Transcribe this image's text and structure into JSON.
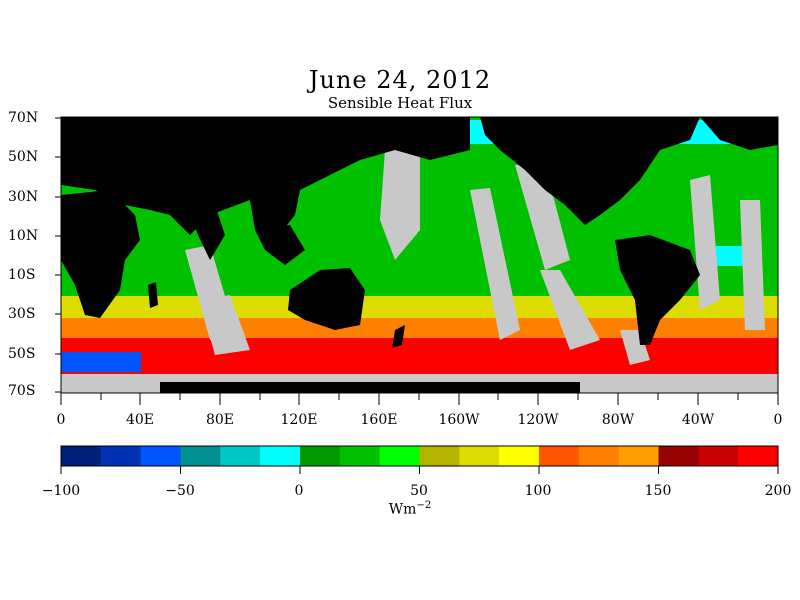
{
  "title": "June 24, 2012",
  "subtitle": "Sensible Heat Flux",
  "lat_labels": [
    "70N",
    "50N",
    "30N",
    "10N",
    "10S",
    "30S",
    "50S",
    "70S"
  ],
  "lon_labels": [
    "0",
    "40E",
    "80E",
    "120E",
    "160E",
    "160W",
    "120W",
    "80W",
    "40W",
    "0"
  ],
  "colorbar": {
    "labels": [
      "−100",
      "−50",
      "0",
      "50",
      "100",
      "150",
      "200"
    ],
    "units_base": "Wm",
    "units_exp": "−2",
    "colors": [
      "#001f7a",
      "#0033b3",
      "#0055ff",
      "#009090",
      "#00c8c8",
      "#00ffff",
      "#009900",
      "#00c000",
      "#00ff00",
      "#b4b400",
      "#dcdc00",
      "#ffff00",
      "#ff5500",
      "#ff8000",
      "#ffa000",
      "#960000",
      "#c80000",
      "#ff0000"
    ]
  },
  "legend": {
    "land": "#000000",
    "missing": "#c8c8c8"
  }
}
